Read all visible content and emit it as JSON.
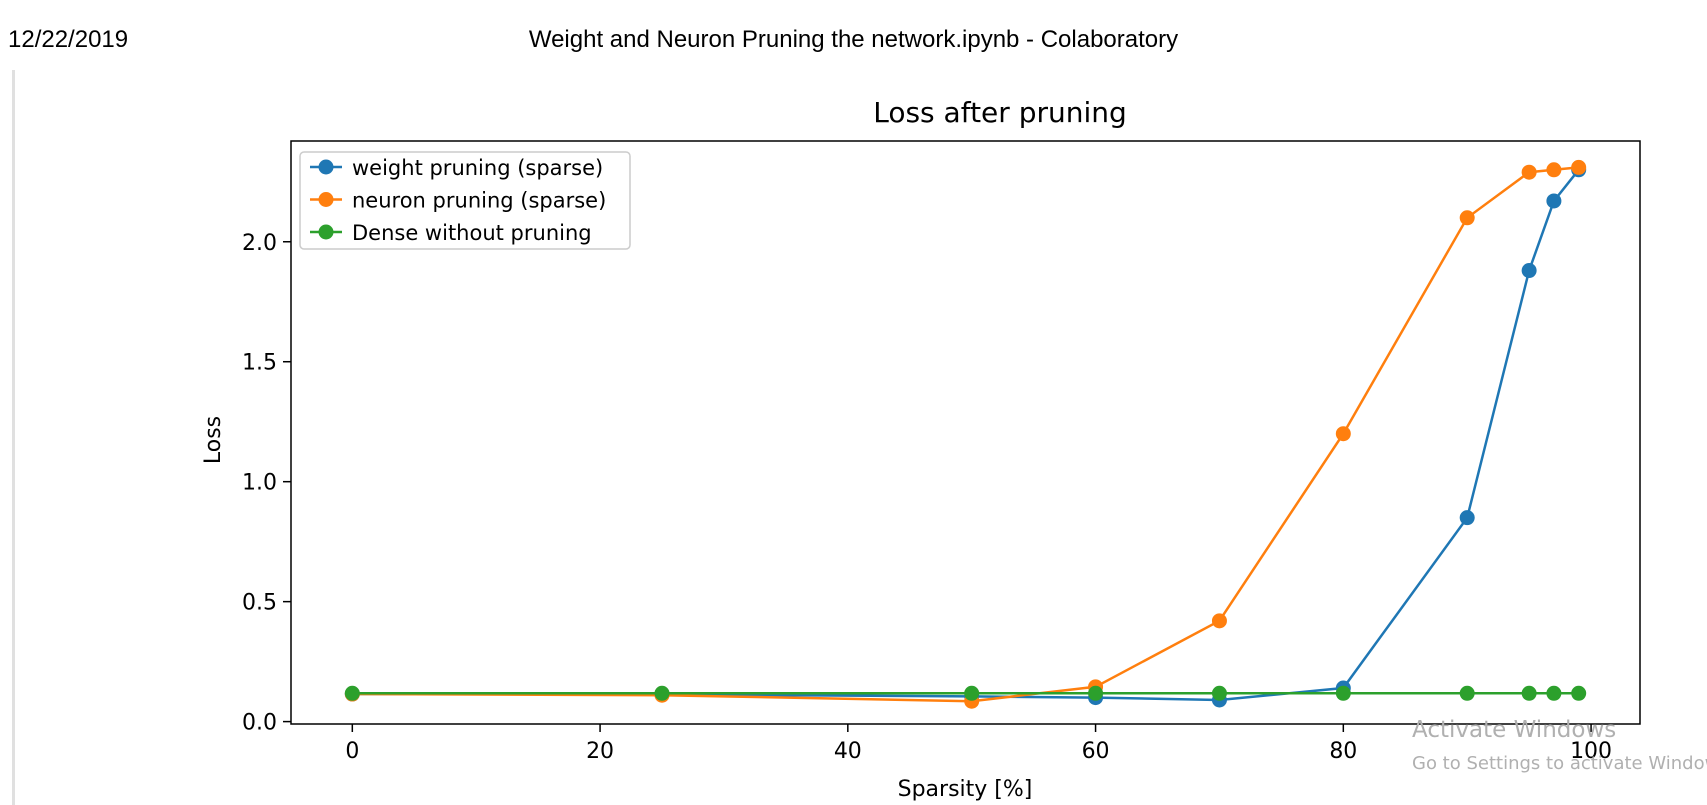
{
  "print_header": {
    "date": "12/22/2019",
    "title": "Weight and Neuron Pruning the network.ipynb - Colaboratory"
  },
  "watermark": {
    "title": "Activate Windows",
    "subtitle": "Go to Settings to activate Windows."
  },
  "chart_data": {
    "type": "line",
    "title": "Loss after pruning",
    "xlabel": "Sparsity [%]",
    "ylabel": "Loss",
    "xlim": [
      -4.95,
      103.95
    ],
    "ylim": [
      -0.01,
      2.42
    ],
    "xticks": [
      0,
      20,
      40,
      60,
      80,
      100
    ],
    "yticks": [
      0.0,
      0.5,
      1.0,
      1.5,
      2.0
    ],
    "xtick_labels": [
      "0",
      "20",
      "40",
      "60",
      "80",
      "100"
    ],
    "ytick_labels": [
      "0.0",
      "0.5",
      "1.0",
      "1.5",
      "2.0"
    ],
    "legend_position": "top-left",
    "grid": false,
    "series": [
      {
        "name": "weight pruning (sparse)",
        "color": "#1f77b4",
        "x": [
          0,
          25,
          50,
          60,
          70,
          80,
          90,
          95,
          97,
          99
        ],
        "y": [
          0.115,
          0.113,
          0.105,
          0.1,
          0.09,
          0.14,
          0.85,
          1.88,
          2.17,
          2.3
        ]
      },
      {
        "name": "neuron pruning (sparse)",
        "color": "#ff7f0e",
        "x": [
          0,
          25,
          50,
          60,
          70,
          80,
          90,
          95,
          97,
          99
        ],
        "y": [
          0.115,
          0.11,
          0.085,
          0.145,
          0.42,
          1.2,
          2.1,
          2.29,
          2.3,
          2.31
        ]
      },
      {
        "name": "Dense without pruning",
        "color": "#2ca02c",
        "x": [
          0,
          25,
          50,
          60,
          70,
          80,
          90,
          95,
          97,
          99
        ],
        "y": [
          0.118,
          0.118,
          0.118,
          0.118,
          0.118,
          0.118,
          0.118,
          0.118,
          0.118,
          0.118
        ]
      }
    ]
  }
}
